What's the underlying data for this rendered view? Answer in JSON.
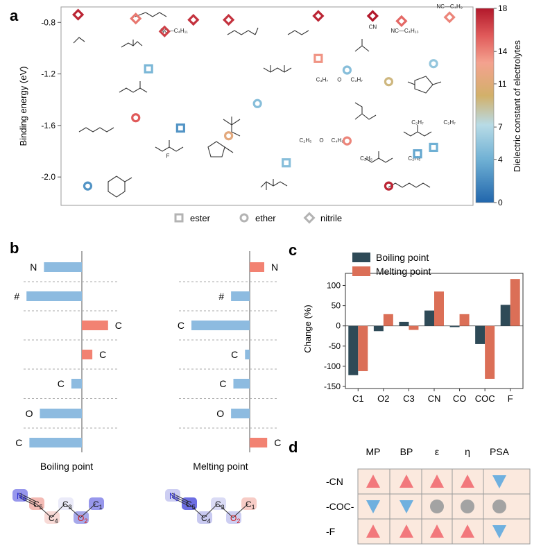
{
  "panels": {
    "a": "a",
    "b": "b",
    "c": "c",
    "d": "d"
  },
  "chart_data": [
    {
      "type": "scatter",
      "panel": "a",
      "ylabel": "Binding energy (eV)",
      "yticks": [
        -0.8,
        -1.2,
        -1.6,
        -2.0
      ],
      "ylim": [
        -2.22,
        -0.68
      ],
      "colorbar": {
        "label": "Dielectric constant of electrolytes",
        "ticks": [
          0,
          4,
          7,
          11,
          14,
          18
        ],
        "range": [
          0,
          18
        ]
      },
      "legend": [
        {
          "name": "ester",
          "marker": "square"
        },
        {
          "name": "ether",
          "marker": "circle"
        },
        {
          "name": "nitrile",
          "marker": "diamond"
        }
      ],
      "points": [
        {
          "marker": "diamond",
          "x": 1.05,
          "y": -0.74,
          "eps": 17.5
        },
        {
          "marker": "diamond",
          "x": 1.95,
          "y": -0.77,
          "eps": 14.5
        },
        {
          "marker": "diamond",
          "x": 2.4,
          "y": -0.87,
          "eps": 16.5
        },
        {
          "marker": "diamond",
          "x": 2.85,
          "y": -0.78,
          "eps": 17.0
        },
        {
          "marker": "diamond",
          "x": 3.4,
          "y": -0.78,
          "eps": 17.0
        },
        {
          "marker": "diamond",
          "x": 4.8,
          "y": -0.75,
          "eps": 17.5
        },
        {
          "marker": "diamond",
          "x": 5.65,
          "y": -0.75,
          "eps": 18.0
        },
        {
          "marker": "diamond",
          "x": 6.1,
          "y": -0.79,
          "eps": 15.0
        },
        {
          "marker": "diamond",
          "x": 6.85,
          "y": -0.76,
          "eps": 14.0
        },
        {
          "marker": "square",
          "x": 2.15,
          "y": -1.16,
          "eps": 4.5
        },
        {
          "marker": "square",
          "x": 4.8,
          "y": -1.08,
          "eps": 13.5
        },
        {
          "marker": "square",
          "x": 2.65,
          "y": -1.62,
          "eps": 2.5
        },
        {
          "marker": "square",
          "x": 4.3,
          "y": -1.89,
          "eps": 5.0
        },
        {
          "marker": "square",
          "x": 6.35,
          "y": -1.82,
          "eps": 3.5
        },
        {
          "marker": "square",
          "x": 6.6,
          "y": -1.77,
          "eps": 4.0
        },
        {
          "marker": "circle",
          "x": 5.25,
          "y": -1.17,
          "eps": 5.0
        },
        {
          "marker": "circle",
          "x": 6.6,
          "y": -1.12,
          "eps": 5.5
        },
        {
          "marker": "circle",
          "x": 5.9,
          "y": -1.26,
          "eps": 9.5
        },
        {
          "marker": "circle",
          "x": 3.85,
          "y": -1.43,
          "eps": 5.0
        },
        {
          "marker": "circle",
          "x": 1.95,
          "y": -1.54,
          "eps": 15.5
        },
        {
          "marker": "circle",
          "x": 3.4,
          "y": -1.68,
          "eps": 11.5
        },
        {
          "marker": "circle",
          "x": 5.25,
          "y": -1.72,
          "eps": 14.0
        },
        {
          "marker": "circle",
          "x": 1.2,
          "y": -2.07,
          "eps": 2.5
        },
        {
          "marker": "circle",
          "x": 5.9,
          "y": -2.07,
          "eps": 17.5
        }
      ],
      "molecule_labels": [
        {
          "text": "NC—C₄H₉",
          "x": 6.85,
          "y": -0.69
        },
        {
          "text": "NC—C₄H₁₁",
          "x": 2.55,
          "y": -0.88
        },
        {
          "text": "NC—C₄H₁₃",
          "x": 6.15,
          "y": -0.88
        },
        {
          "text": "C₃H₇",
          "x": 4.86,
          "y": -1.26
        },
        {
          "text": "C₃H₇",
          "x": 5.4,
          "y": -1.26
        },
        {
          "text": "C₃H₇",
          "x": 6.35,
          "y": -1.59
        },
        {
          "text": "C₃H₇",
          "x": 6.85,
          "y": -1.59
        },
        {
          "text": "C₂H₅",
          "x": 4.6,
          "y": -1.73
        },
        {
          "text": "C₄H₉",
          "x": 5.1,
          "y": -1.73
        },
        {
          "text": "C₂H₅",
          "x": 5.55,
          "y": -1.87
        },
        {
          "text": "C₂H₅",
          "x": 6.3,
          "y": -1.87
        },
        {
          "text": "O",
          "x": 4.85,
          "y": -1.73
        },
        {
          "text": "O",
          "x": 5.13,
          "y": -1.26
        },
        {
          "text": "CN",
          "x": 5.65,
          "y": -0.85
        },
        {
          "text": "F",
          "x": 2.45,
          "y": -1.85
        }
      ]
    },
    {
      "type": "bar",
      "panel": "b",
      "orientation": "horizontal",
      "titles": [
        "Boiling point",
        "Melting point"
      ],
      "rows": [
        {
          "labels": [
            "N",
            "N"
          ],
          "bp": -0.65,
          "mp": 0.25
        },
        {
          "labels": [
            "#",
            "#"
          ],
          "bp": -0.95,
          "mp": -0.32
        },
        {
          "labels": [
            "C",
            "C"
          ],
          "bp": 0.45,
          "mp": -1.0
        },
        {
          "labels": [
            "C",
            "C"
          ],
          "bp": 0.18,
          "mp": -0.08
        },
        {
          "labels": [
            "C",
            "C"
          ],
          "bp": -0.18,
          "mp": -0.28
        },
        {
          "labels": [
            "O",
            "O"
          ],
          "bp": -0.72,
          "mp": -0.32
        },
        {
          "labels": [
            "C",
            "C"
          ],
          "bp": -0.9,
          "mp": 0.3
        }
      ],
      "positive_color": "#f28272",
      "negative_color": "#8dbbe0",
      "molecule_atoms": [
        {
          "id": "N6",
          "letter": "N",
          "sub": "6"
        },
        {
          "id": "C5",
          "letter": "C",
          "sub": "5"
        },
        {
          "id": "C4",
          "letter": "C",
          "sub": "4"
        },
        {
          "id": "C3",
          "letter": "C",
          "sub": "3"
        },
        {
          "id": "O2",
          "letter": "O",
          "sub": "2"
        },
        {
          "id": "C1",
          "letter": "C",
          "sub": "1"
        }
      ],
      "molecule_shading": {
        "left": {
          "N6": "#8c8cea",
          "C5": "#f3b4ad",
          "C4": "#f7d6d2",
          "C3": "#e9e9f8",
          "O2": "#9da0e8",
          "C1": "#8c8cea"
        },
        "right": {
          "N6": "#c8c9f1",
          "C5": "#5d5ee0",
          "C4": "#c2c3ee",
          "C3": "#d6d7f4",
          "O2": "#c8c9f1",
          "C1": "#f6c6c0"
        }
      }
    },
    {
      "type": "bar",
      "panel": "c",
      "categories": [
        "C1",
        "O2",
        "C3",
        "CN",
        "CO",
        "COC",
        "F"
      ],
      "series": [
        {
          "name": "Boiling point",
          "color": "#2e4a57",
          "values": [
            -122,
            -13,
            10,
            38,
            -3,
            -45,
            52
          ]
        },
        {
          "name": "Melting point",
          "color": "#db6f57",
          "values": [
            -112,
            29,
            -10,
            85,
            29,
            -131,
            116
          ]
        }
      ],
      "ylabel": "Change (%)",
      "ylim": [
        -155,
        130
      ],
      "yticks": [
        100,
        50,
        0,
        -50,
        -100,
        -150
      ]
    },
    {
      "type": "table",
      "panel": "d",
      "columns": [
        "MP",
        "BP",
        "ε",
        "η",
        "PSA"
      ],
      "rows": [
        {
          "label": "-CN",
          "cells": [
            "up",
            "up",
            "up",
            "up",
            "down"
          ]
        },
        {
          "label": "-COC-",
          "cells": [
            "down",
            "down",
            "none",
            "none",
            "none"
          ]
        },
        {
          "label": "-F",
          "cells": [
            "up",
            "up",
            "up",
            "up",
            "down"
          ]
        }
      ],
      "colors": {
        "up": "#f2787c",
        "down": "#6fb0df",
        "none": "#a3a3a3",
        "background": "#fbe9de"
      }
    }
  ]
}
